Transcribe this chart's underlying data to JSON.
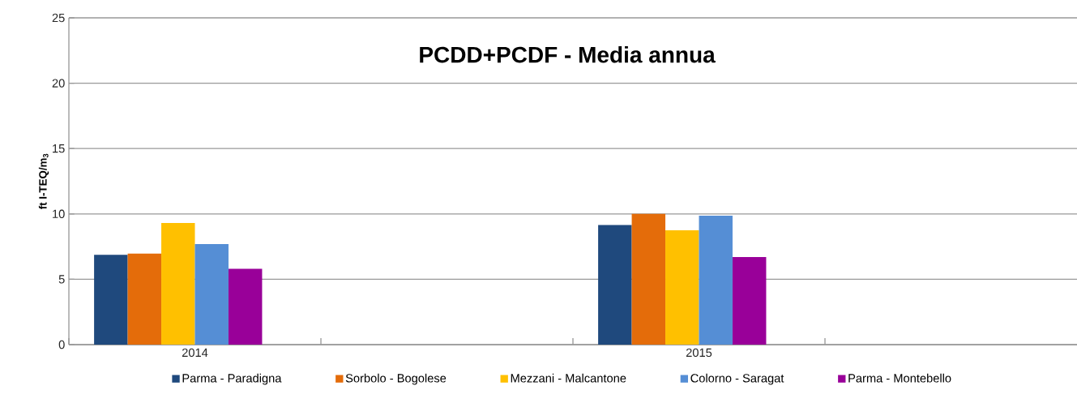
{
  "chart_data": {
    "type": "bar",
    "title": "PCDD+PCDF - Media annua",
    "ylabel": "ft I-TEQ/m$_{3}$",
    "categories": [
      "2014",
      null,
      "2015",
      null
    ],
    "series": [
      {
        "name": "Parma - Paradigna",
        "color": "#1f497d",
        "values": [
          6.87,
          null,
          9.15,
          null
        ]
      },
      {
        "name": "Sorbolo - Bogolese",
        "color": "#e46c0a",
        "values": [
          6.96,
          null,
          10.0,
          null
        ]
      },
      {
        "name": "Mezzani - Malcantone",
        "color": "#ffc000",
        "values": [
          9.3,
          null,
          8.75,
          null
        ]
      },
      {
        "name": "Colorno - Saragat",
        "color": "#558ed5",
        "values": [
          7.7,
          null,
          9.87,
          null
        ]
      },
      {
        "name": "Parma - Montebello",
        "color": "#990099",
        "values": [
          5.8,
          null,
          6.7,
          null
        ]
      }
    ],
    "ylim": [
      0,
      25
    ],
    "yticks": [
      0,
      5,
      10,
      15,
      20,
      25
    ],
    "grid": "y",
    "legend": "bottom"
  }
}
